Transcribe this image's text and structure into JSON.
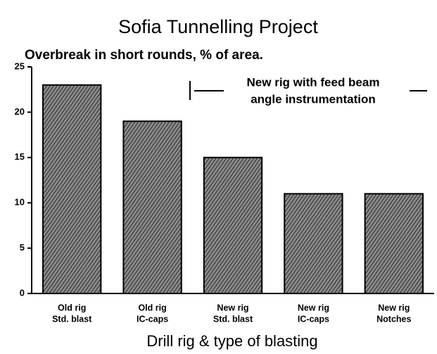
{
  "chart_data": {
    "type": "bar",
    "title": "Sofia Tunnelling Project",
    "subtitle": "Overbreak in short rounds, % of area.",
    "x_label": "Drill rig & type of blasting",
    "annotation": [
      "New rig with feed beam",
      "angle instrumentation"
    ],
    "categories": [
      [
        "Old rig",
        "Std. blast"
      ],
      [
        "Old rig",
        "IC-caps"
      ],
      [
        "New rig",
        "Std. blast"
      ],
      [
        "New rig",
        "IC-caps"
      ],
      [
        "New rig",
        "Notches"
      ]
    ],
    "values": [
      23,
      19,
      15,
      11,
      11
    ],
    "color": "#8a8a8a",
    "ylim": [
      0,
      25
    ],
    "yticks": [
      0,
      5,
      10,
      15,
      20,
      25
    ],
    "grid": false
  }
}
